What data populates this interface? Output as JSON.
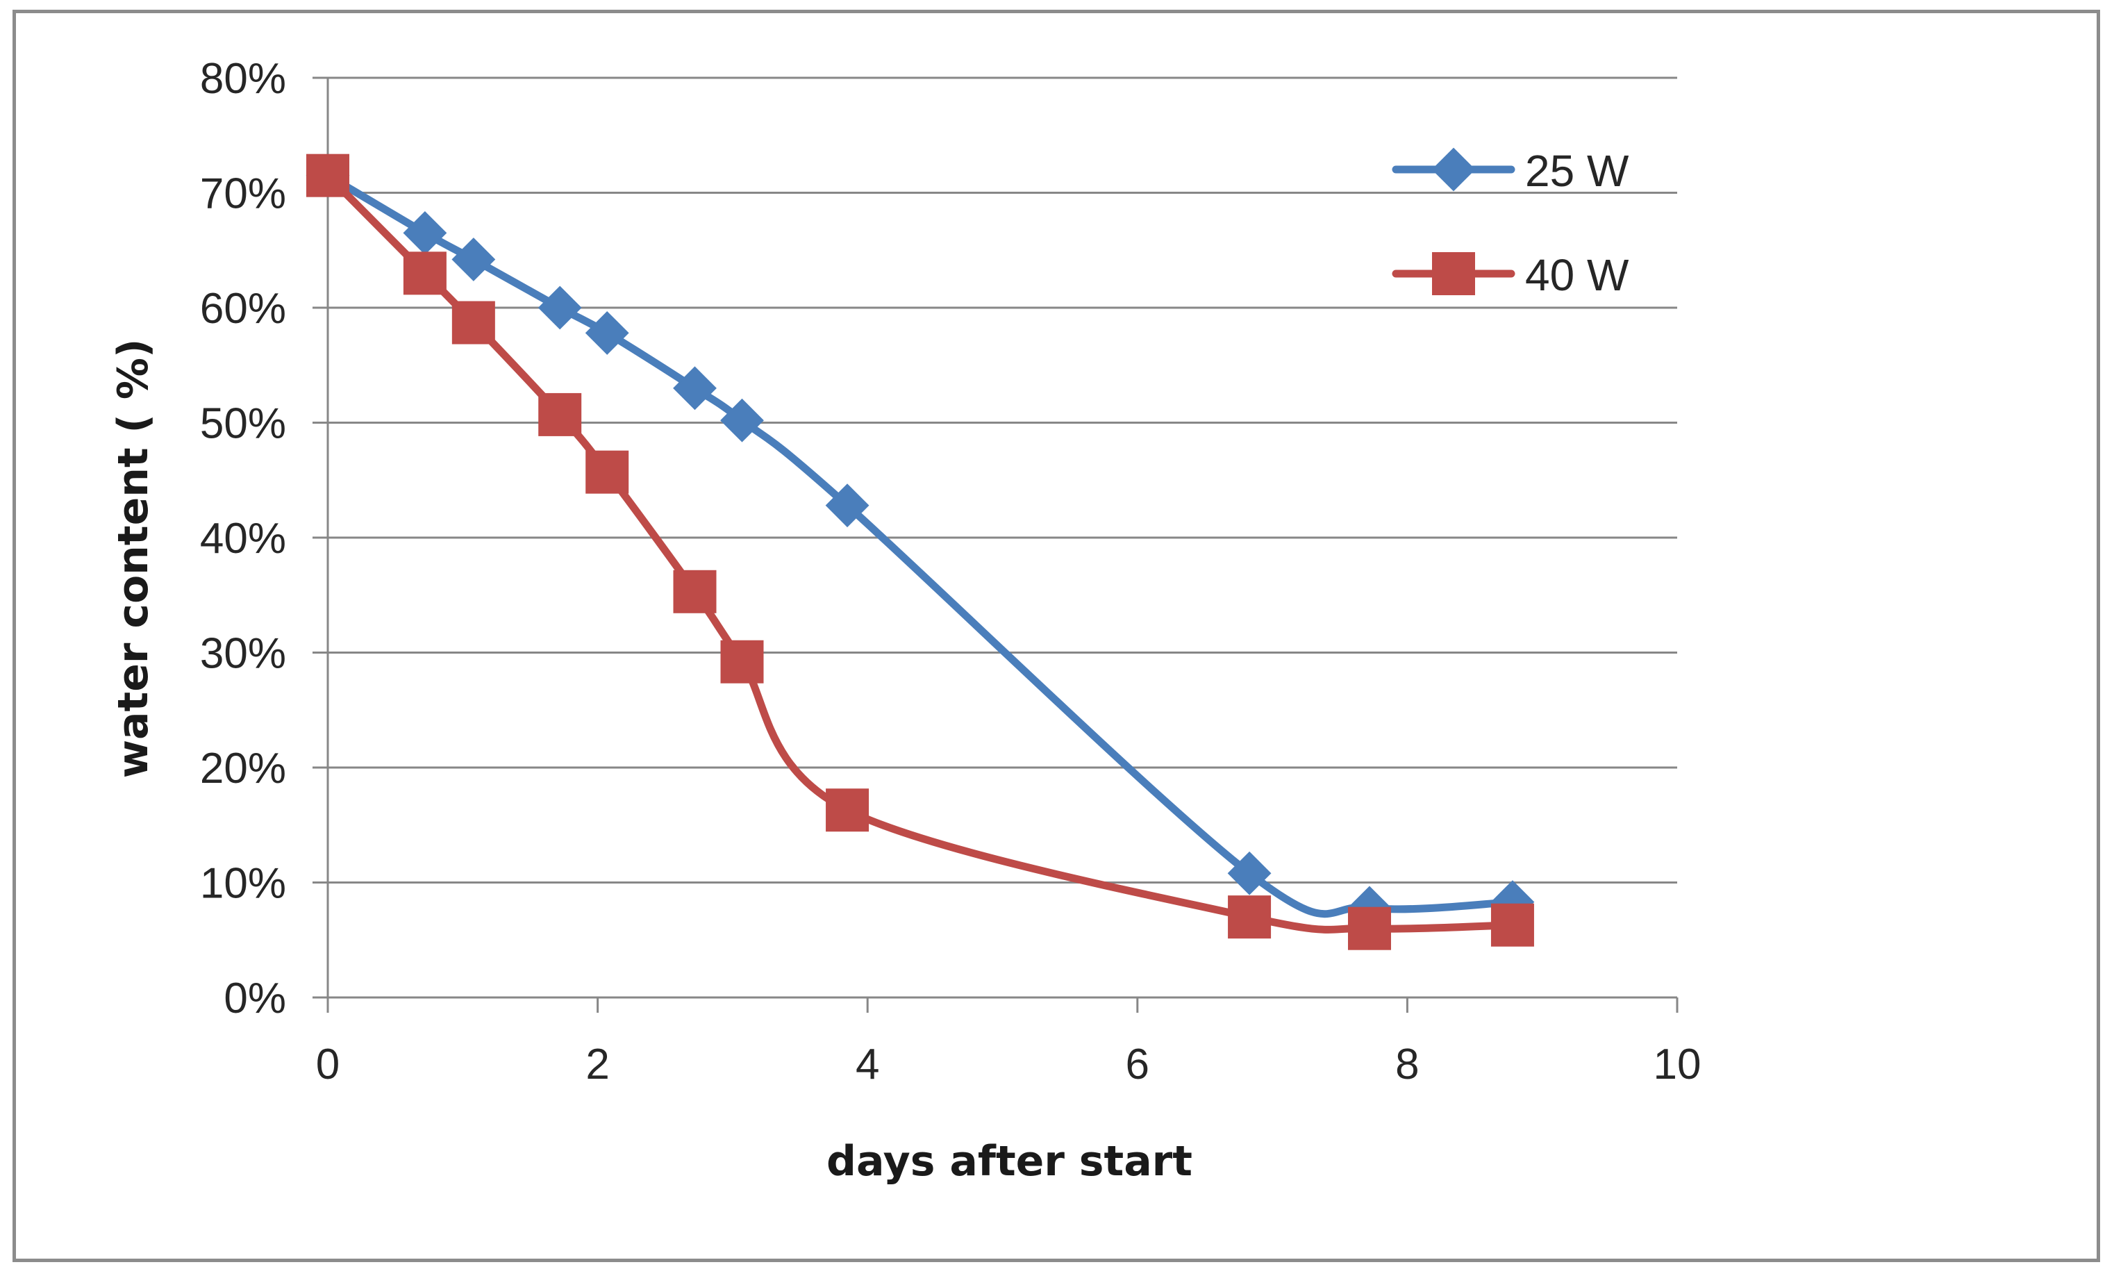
{
  "chart_data": {
    "type": "line",
    "title": "",
    "xlabel": "days after start",
    "ylabel": "water content ( %)",
    "xlim": [
      0,
      10
    ],
    "ylim": [
      0,
      0.8
    ],
    "x_ticks": [
      0,
      2,
      4,
      6,
      8,
      10
    ],
    "x_tick_labels": [
      "0",
      "2",
      "4",
      "6",
      "8",
      "10"
    ],
    "y_ticks": [
      0,
      0.1,
      0.2,
      0.3,
      0.4,
      0.5,
      0.6,
      0.7,
      0.8
    ],
    "y_tick_labels": [
      "0%",
      "10%",
      "20%",
      "30%",
      "40%",
      "50%",
      "60%",
      "70%",
      "80%"
    ],
    "grid": "horizontal",
    "legend_position": "top-right",
    "series": [
      {
        "name": "25 W",
        "color": "#4a7ebb",
        "marker": "diamond",
        "x": [
          0.0,
          0.72,
          1.08,
          1.72,
          2.07,
          2.72,
          3.07,
          3.85,
          6.83,
          7.72,
          8.78
        ],
        "y": [
          0.715,
          0.665,
          0.642,
          0.6,
          0.578,
          0.53,
          0.502,
          0.428,
          0.108,
          0.078,
          0.083
        ]
      },
      {
        "name": "40 W",
        "color": "#be4b48",
        "marker": "square",
        "x": [
          0.0,
          0.72,
          1.08,
          1.72,
          2.07,
          2.72,
          3.07,
          3.85,
          6.83,
          7.72,
          8.78
        ],
        "y": [
          0.715,
          0.63,
          0.587,
          0.507,
          0.457,
          0.353,
          0.292,
          0.163,
          0.07,
          0.06,
          0.063
        ]
      }
    ]
  }
}
